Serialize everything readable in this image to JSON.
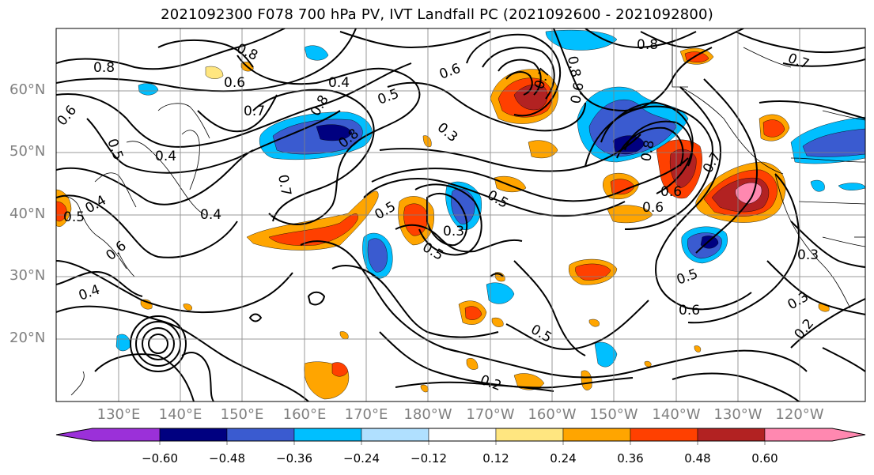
{
  "title": "2021092300 F078 700 hPa PV, IVT Landfall PC (2021092600 - 2021092800)",
  "lat_labels": [
    "60°N",
    "50°N",
    "40°N",
    "30°N",
    "20°N"
  ],
  "lon_labels": [
    "130°E",
    "140°E",
    "150°E",
    "160°E",
    "170°E",
    "180°W",
    "170°W",
    "160°W",
    "150°W",
    "140°W",
    "130°W",
    "120°W"
  ],
  "colorbar": {
    "tick_labels": [
      "−0.60",
      "−0.48",
      "−0.36",
      "−0.24",
      "−0.12",
      "0.12",
      "0.24",
      "0.36",
      "0.48",
      "0.60"
    ],
    "colors": [
      "#9b30d9",
      "#000080",
      "#3a5bd0",
      "#00bfff",
      "#b0e0ff",
      "#ffffff",
      "#ffe680",
      "#ffa500",
      "#ff4000",
      "#b22222",
      "#ff88b0"
    ]
  },
  "contour_labels": {
    "c0": "0.8",
    "c1": "0.8",
    "c2": "0.6",
    "c3": "0.7",
    "c4": "0.6",
    "c5": "0.5",
    "c6": "0.4",
    "c7": "0.4",
    "c8": "0.5",
    "c9": "0.4",
    "c10": "0.6",
    "c11": "0.4",
    "c12": "0.8",
    "c13": "0.7",
    "c14": "0.5",
    "c15": "0.8",
    "c16": "0.4",
    "c17": "0.3",
    "c18": "0.6",
    "c19": "0.8",
    "c20": "0.7",
    "c21": "0.5",
    "c22": "0.3",
    "c23": "0.5",
    "c24": "0.5",
    "c25": "0.6",
    "c26": "0.6",
    "c27": "0.7",
    "c28": "0.8",
    "c29": "0.7",
    "c30": "0.3",
    "c31": "0.5",
    "c32": "0.6",
    "c33": "0.3",
    "c34": "0.2",
    "c35": "0.5",
    "c36": "0.2",
    "c37": "0.6",
    "c38": "0.8"
  }
}
